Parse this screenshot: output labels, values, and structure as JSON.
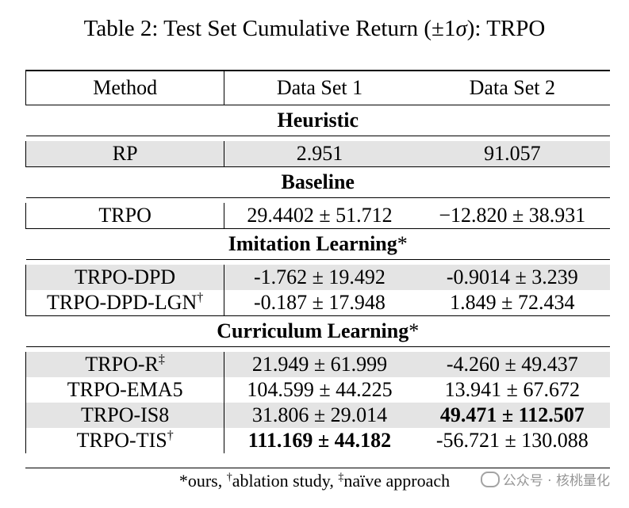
{
  "caption": {
    "prefix": "Table 2: Test Set Cumulative Return (±1",
    "symbol": "σ",
    "suffix": "): TRPO"
  },
  "columns": [
    "Method",
    "Data Set 1",
    "Data Set 2"
  ],
  "sections": {
    "heuristic": "Heuristic",
    "baseline": "Baseline",
    "imitation": "Imitation Learning",
    "curriculum": "Curriculum Learning",
    "star": "*"
  },
  "rows": {
    "rp": {
      "method": "RP",
      "ds1": "2.951",
      "ds2": "91.057"
    },
    "trpo": {
      "method": "TRPO",
      "ds1": "29.4402 ± 51.712",
      "ds2": "−12.820 ± 38.931"
    },
    "trpo_dpd": {
      "method": "TRPO-DPD",
      "ds1": "-1.762 ± 19.492",
      "ds2": "-0.9014 ± 3.239"
    },
    "trpo_dpd_lgn": {
      "method": "TRPO-DPD-LGN",
      "mark": "†",
      "ds1": "-0.187 ± 17.948",
      "ds2": "1.849 ± 72.434"
    },
    "trpo_r": {
      "method": "TRPO-R",
      "mark": "‡",
      "ds1": "21.949 ± 61.999",
      "ds2": "-4.260 ± 49.437"
    },
    "trpo_ema5": {
      "method": "TRPO-EMA5",
      "ds1": "104.599 ± 44.225",
      "ds2": "13.941 ± 67.672"
    },
    "trpo_is8": {
      "method": "TRPO-IS8",
      "ds1": "31.806 ± 29.014",
      "ds2_bold": "49.471 ± 112.507"
    },
    "trpo_tis": {
      "method": "TRPO-TIS",
      "mark": "†",
      "ds1_bold": "111.169 ± 44.182",
      "ds2": "-56.721 ± 130.088"
    }
  },
  "footnote": {
    "ours": "*ours, ",
    "dagger": "†",
    "ablation": "ablation study, ",
    "ddagger": "‡",
    "naive": "naïve approach"
  },
  "watermark": "公众号 · 核桃量化"
}
